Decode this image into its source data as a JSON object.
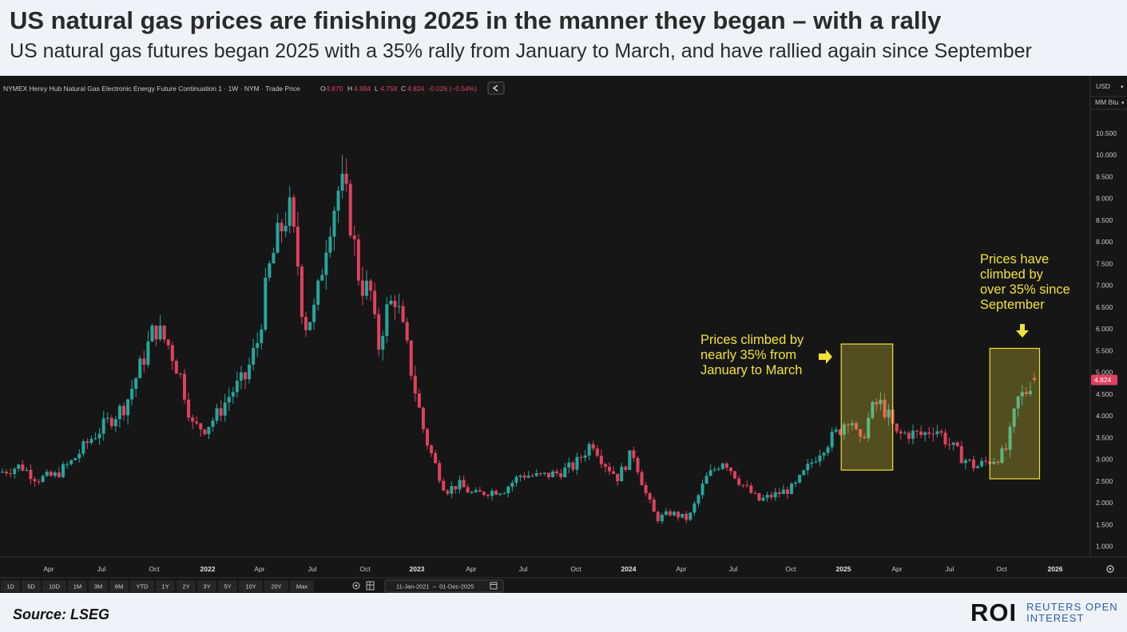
{
  "header": {
    "title": "US natural gas prices are finishing 2025 in the manner they began – with a rally",
    "subtitle": "US natural gas futures began 2025 with a 35% rally from January to March, and have rallied again since September"
  },
  "chart_header": {
    "symbol": "NYMEX Henry Hub Natural Gas Electronic Energy Future Continuation 1 · 1W · NYM · Trade Price",
    "o_label": "O",
    "o_value": "4.870",
    "h_label": "H",
    "h_value": "4.984",
    "l_label": "L",
    "l_value": "4.758",
    "c_label": "C",
    "c_value": "4.824",
    "change": "-0.026 (−0.54%)",
    "collapse_icon": "chevron-left-icon"
  },
  "price_axis": {
    "currency": "USD",
    "unit": "MM Btu",
    "last_price": "4.824",
    "ticks": [
      "10.500",
      "10.000",
      "9.500",
      "9.000",
      "8.500",
      "8.000",
      "7.500",
      "7.000",
      "6.500",
      "6.000",
      "5.500",
      "5.000",
      "4.500",
      "4.000",
      "3.500",
      "3.000",
      "2.500",
      "2.000",
      "1.500",
      "1.000"
    ]
  },
  "time_axis": {
    "labels": [
      "Apr",
      "Jul",
      "Oct",
      "2022",
      "Apr",
      "Jul",
      "Oct",
      "2023",
      "Apr",
      "Jul",
      "Oct",
      "2024",
      "Apr",
      "Jul",
      "Oct",
      "2025",
      "Apr",
      "Jul",
      "Oct",
      "2026"
    ],
    "bold": [
      "2022",
      "2023",
      "2024",
      "2025",
      "2026"
    ],
    "settings_icon": "gear-icon"
  },
  "toolbar": {
    "ranges": [
      "1D",
      "5D",
      "10D",
      "1M",
      "3M",
      "6M",
      "YTD",
      "1Y",
      "2Y",
      "3Y",
      "5Y",
      "10Y",
      "20Y",
      "Max"
    ],
    "date_range": "11-Jan-2021  –  01-Dec-2025",
    "icons": [
      "target-icon",
      "table-icon",
      "calendar-icon"
    ]
  },
  "annotations": {
    "left": [
      "Prices climbed by",
      "nearly 35% from",
      "January to March"
    ],
    "right": [
      "Prices have",
      "climbed by",
      "over 35% since",
      "September"
    ]
  },
  "colors": {
    "up": "#26a69a",
    "down": "#e0415f",
    "annotation": "#f2e13a",
    "panel": "#161616"
  },
  "chart_data": {
    "type": "candlestick",
    "interval": "1W",
    "ylim": [
      0.75,
      10.75
    ],
    "unit": "USD / MM Btu",
    "x_range": [
      "2021-01-11",
      "2025-12-01"
    ],
    "anchors": [
      [
        "2021-01-11",
        2.7
      ],
      [
        "2021-02-15",
        2.85
      ],
      [
        "2021-03-15",
        2.55
      ],
      [
        "2021-04-15",
        2.62
      ],
      [
        "2021-05-15",
        2.95
      ],
      [
        "2021-06-15",
        3.45
      ],
      [
        "2021-07-15",
        3.85
      ],
      [
        "2021-08-15",
        4.25
      ],
      [
        "2021-09-15",
        5.3
      ],
      [
        "2021-10-05",
        6.05
      ],
      [
        "2021-10-30",
        5.6
      ],
      [
        "2021-11-20",
        4.85
      ],
      [
        "2021-12-10",
        3.75
      ],
      [
        "2021-12-31",
        3.73
      ],
      [
        "2022-01-20",
        4.0
      ],
      [
        "2022-02-15",
        4.55
      ],
      [
        "2022-03-10",
        4.85
      ],
      [
        "2022-04-01",
        5.72
      ],
      [
        "2022-04-20",
        7.3
      ],
      [
        "2022-05-05",
        8.05
      ],
      [
        "2022-05-25",
        8.8
      ],
      [
        "2022-06-10",
        7.45
      ],
      [
        "2022-06-20",
        6.05
      ],
      [
        "2022-07-10",
        6.45
      ],
      [
        "2022-08-01",
        8.35
      ],
      [
        "2022-08-22",
        9.35
      ],
      [
        "2022-09-05",
        8.8
      ],
      [
        "2022-09-25",
        7.05
      ],
      [
        "2022-10-15",
        6.8
      ],
      [
        "2022-10-25",
        5.45
      ],
      [
        "2022-11-08",
        6.35
      ],
      [
        "2022-11-25",
        6.75
      ],
      [
        "2022-12-15",
        5.55
      ],
      [
        "2022-12-31",
        4.48
      ],
      [
        "2023-01-15",
        3.55
      ],
      [
        "2023-01-31",
        2.95
      ],
      [
        "2023-02-20",
        2.28
      ],
      [
        "2023-03-15",
        2.42
      ],
      [
        "2023-04-10",
        2.18
      ],
      [
        "2023-05-01",
        2.25
      ],
      [
        "2023-06-01",
        2.3
      ],
      [
        "2023-07-01",
        2.65
      ],
      [
        "2023-08-01",
        2.6
      ],
      [
        "2023-09-01",
        2.68
      ],
      [
        "2023-10-01",
        2.85
      ],
      [
        "2023-11-01",
        3.42
      ],
      [
        "2023-11-20",
        2.95
      ],
      [
        "2023-12-15",
        2.58
      ],
      [
        "2024-01-10",
        3.18
      ],
      [
        "2024-02-01",
        2.22
      ],
      [
        "2024-02-20",
        1.62
      ],
      [
        "2024-03-15",
        1.77
      ],
      [
        "2024-04-15",
        1.62
      ],
      [
        "2024-05-15",
        2.55
      ],
      [
        "2024-06-15",
        3.0
      ],
      [
        "2024-07-15",
        2.45
      ],
      [
        "2024-08-15",
        2.05
      ],
      [
        "2024-09-15",
        2.2
      ],
      [
        "2024-10-15",
        2.35
      ],
      [
        "2024-11-10",
        2.85
      ],
      [
        "2024-12-01",
        3.25
      ],
      [
        "2024-12-31",
        3.65
      ],
      [
        "2025-01-20",
        4.05
      ],
      [
        "2025-02-05",
        3.3
      ],
      [
        "2025-02-25",
        4.1
      ],
      [
        "2025-03-10",
        4.32
      ],
      [
        "2025-03-25",
        4.05
      ],
      [
        "2025-04-10",
        3.55
      ],
      [
        "2025-05-01",
        3.6
      ],
      [
        "2025-05-25",
        3.55
      ],
      [
        "2025-06-15",
        3.75
      ],
      [
        "2025-07-10",
        3.35
      ],
      [
        "2025-08-01",
        3.05
      ],
      [
        "2025-08-25",
        2.82
      ],
      [
        "2025-09-15",
        2.95
      ],
      [
        "2025-10-01",
        3.05
      ],
      [
        "2025-10-15",
        3.15
      ],
      [
        "2025-10-25",
        3.65
      ],
      [
        "2025-11-05",
        4.35
      ],
      [
        "2025-11-20",
        4.55
      ],
      [
        "2025-12-01",
        4.85
      ]
    ],
    "last_candle": {
      "date": "2025-12-01",
      "open": 4.87,
      "high": 4.984,
      "low": 4.758,
      "close": 4.824
    },
    "highlights": [
      {
        "from": "2025-01-01",
        "to": "2025-03-31",
        "ylim": [
          2.75,
          5.65
        ]
      },
      {
        "from": "2025-09-15",
        "to": "2025-12-10",
        "ylim": [
          2.55,
          5.55
        ]
      }
    ]
  },
  "footer": {
    "source": "Source: LSEG",
    "logo": "ROI",
    "logo_line1": "REUTERS OPEN",
    "logo_line2": "INTEREST"
  }
}
